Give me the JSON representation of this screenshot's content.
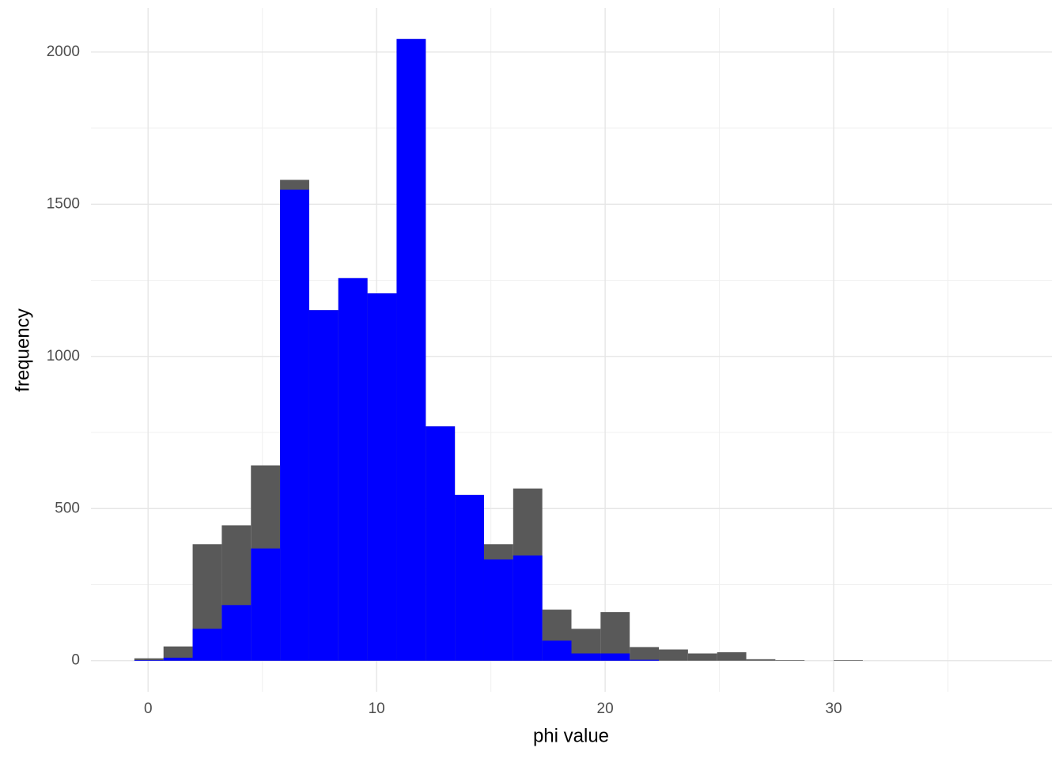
{
  "chart_data": {
    "type": "histogram",
    "x_label": "phi value",
    "y_label": "frequency",
    "bins": [
      -0.6,
      0.675,
      1.95,
      3.225,
      4.5,
      5.775,
      7.05,
      8.325,
      9.6,
      10.875,
      12.15,
      13.425,
      14.7,
      15.975,
      17.25,
      18.525,
      19.8,
      21.075,
      22.35,
      23.625,
      24.9,
      26.175,
      27.45,
      28.725,
      30.0,
      31.275
    ],
    "series": [
      {
        "color": "#595959",
        "values": [
          8,
          47,
          383,
          445,
          642,
          1580,
          1152,
          1257,
          1207,
          2043,
          770,
          545,
          383,
          566,
          168,
          105,
          160,
          45,
          37,
          24,
          28,
          5,
          2,
          0,
          2
        ]
      },
      {
        "color": "#0000ff",
        "values": [
          2,
          10,
          105,
          183,
          369,
          1548,
          1152,
          1257,
          1207,
          2043,
          770,
          545,
          333,
          346,
          66,
          24,
          24,
          3,
          0,
          0,
          0,
          0,
          0,
          0,
          0
        ]
      }
    ],
    "xlim": [
      -2.5,
      39.55
    ],
    "ylim": [
      -102,
      2145
    ],
    "xticks": [
      0,
      10,
      20,
      30
    ],
    "yticks": [
      0,
      500,
      1000,
      1500,
      2000
    ],
    "grid": true
  }
}
